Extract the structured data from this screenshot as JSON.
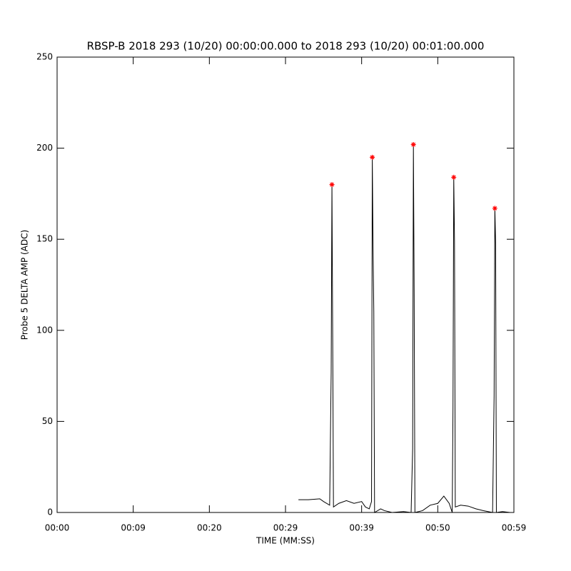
{
  "chart_data": {
    "type": "line",
    "title": "RBSP-B 2018 293 (10/20) 00:00:00.000 to 2018 293 (10/20) 00:01:00.000",
    "x_label": "TIME (MM:SS)",
    "y_label": "Probe 5 DELTA AMP (ADC)",
    "xlim": [
      0,
      60
    ],
    "xticks": [
      {
        "value": 0,
        "label": "00:00"
      },
      {
        "value": 10,
        "label": "00:09"
      },
      {
        "value": 20,
        "label": "00:20"
      },
      {
        "value": 30,
        "label": "00:29"
      },
      {
        "value": 40,
        "label": "00:39"
      },
      {
        "value": 50,
        "label": "00:50"
      },
      {
        "value": 60,
        "label": "00:59"
      }
    ],
    "ylim": [
      0,
      250
    ],
    "yticks": [
      0,
      50,
      100,
      150,
      200,
      250
    ],
    "series": [
      {
        "color": "#000000",
        "x": [
          31.7,
          33.0,
          34.5,
          35.0,
          35.8,
          36.0,
          36.1,
          36.2,
          36.3,
          37.0,
          38.0,
          39.0,
          40.0,
          40.5,
          41.0,
          41.3,
          41.4,
          41.5,
          41.6,
          41.7,
          42.5,
          43.0,
          44.0,
          45.5,
          46.5,
          46.7,
          46.8,
          46.9,
          47.0,
          48.0,
          49.0,
          50.0,
          50.8,
          51.5,
          51.9,
          52.0,
          52.1,
          52.2,
          52.3,
          53.0,
          54.0,
          55.0,
          56.0,
          57.2,
          57.4,
          57.5,
          57.6,
          57.7,
          58.5,
          59.5
        ],
        "values": [
          7,
          7,
          7.5,
          6,
          4,
          77,
          180,
          95,
          3,
          5,
          6.5,
          5,
          6,
          3,
          2,
          6,
          195,
          145,
          110,
          0,
          2,
          1,
          0,
          0.5,
          0,
          35,
          202,
          120,
          0,
          1,
          4,
          5,
          9,
          5,
          0,
          57,
          184,
          149,
          3,
          4,
          3.5,
          2,
          1,
          0,
          64,
          167,
          148,
          0,
          0.5,
          0
        ]
      },
      {
        "type": "scatter",
        "color": "#ff0000",
        "marker": "asterisk",
        "x": [
          36.1,
          41.4,
          46.8,
          52.1,
          57.5
        ],
        "values": [
          180,
          195,
          202,
          184,
          167
        ]
      }
    ]
  }
}
